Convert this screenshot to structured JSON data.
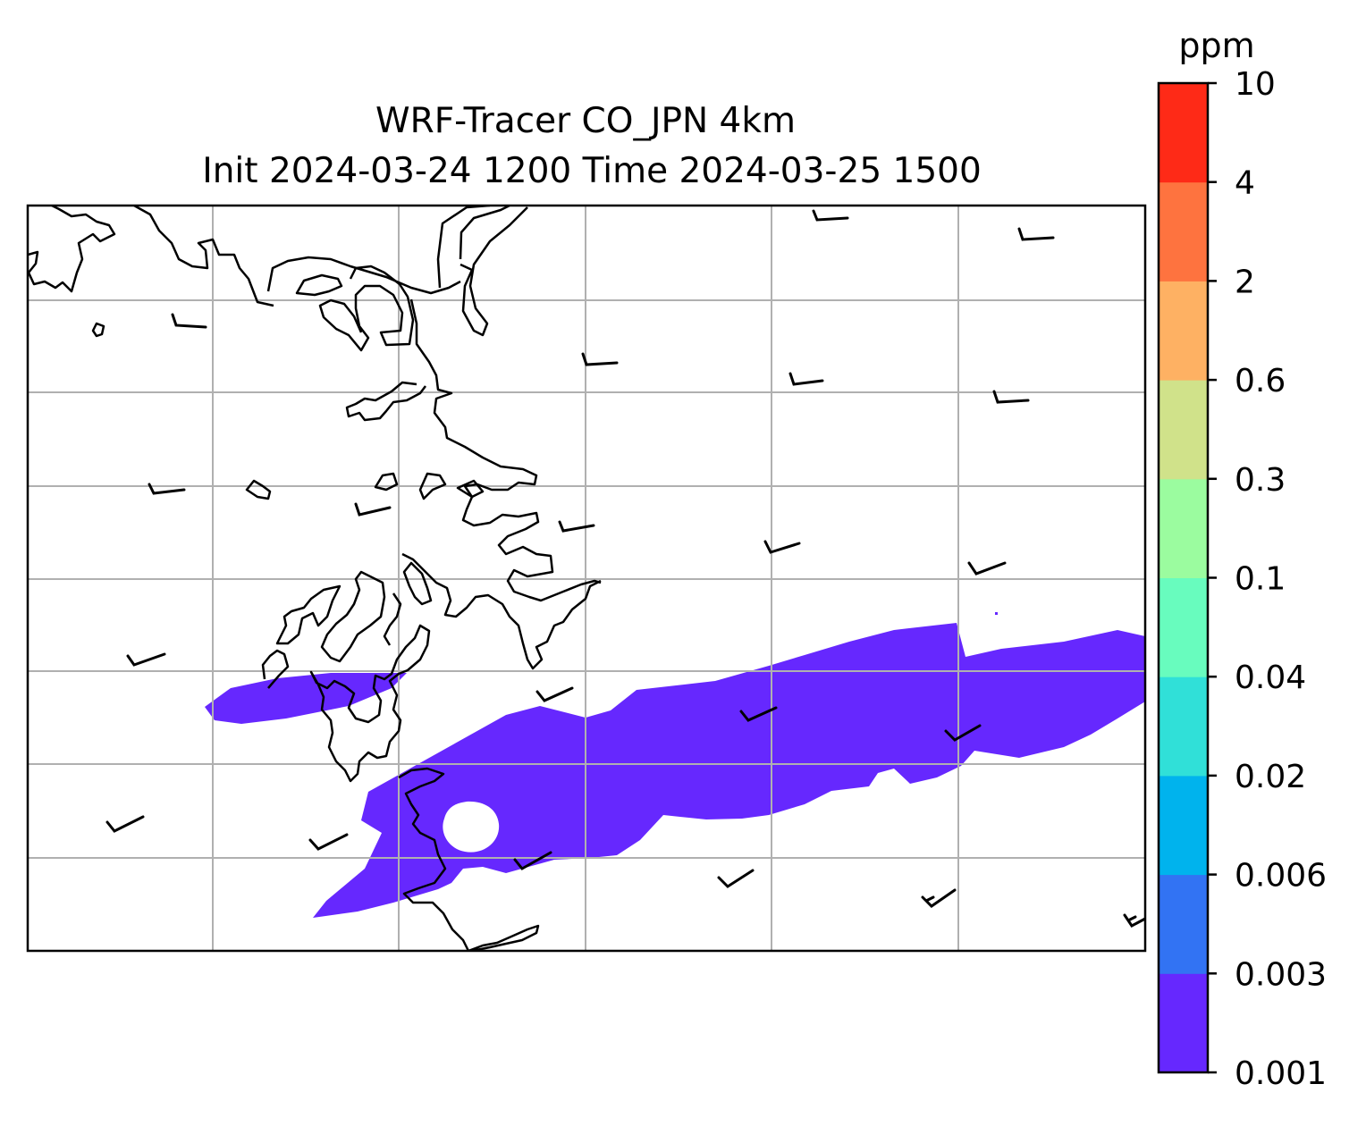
{
  "title": {
    "line1": "WRF-Tracer CO_JPN 4km",
    "line2": "Init 2024-03-24 1200 Time 2024-03-25 1500"
  },
  "colorbar": {
    "unit": "ppm",
    "levels": [
      "0.001",
      "0.003",
      "0.006",
      "0.02",
      "0.04",
      "0.1",
      "0.3",
      "0.6",
      "2",
      "4",
      "10"
    ],
    "colors": [
      "#6628fe",
      "#3273f3",
      "#00b3ed",
      "#30e0d8",
      "#68fcbe",
      "#9bfc9f",
      "#d0e28a",
      "#feb163",
      "#fe733f",
      "#fe2a17"
    ]
  },
  "map": {
    "plume_level": "0.001",
    "plume_color": "#6628fe",
    "gridlines": true
  }
}
